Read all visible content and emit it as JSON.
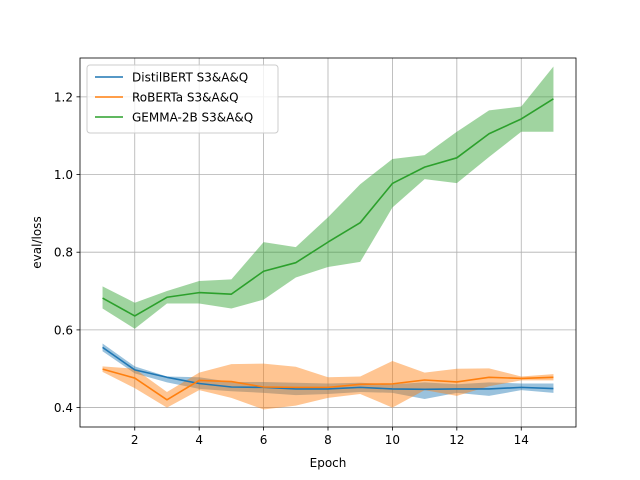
{
  "chart_data": {
    "type": "line",
    "title": "",
    "xlabel": "Epoch",
    "ylabel": "eval/loss",
    "xlim": [
      0.3,
      15.7
    ],
    "ylim": [
      0.35,
      1.3
    ],
    "xticks": [
      2,
      4,
      6,
      8,
      10,
      12,
      14
    ],
    "yticks": [
      0.4,
      0.6,
      0.8,
      1.0,
      1.2
    ],
    "xtick_labels": [
      "2",
      "4",
      "6",
      "8",
      "10",
      "12",
      "14"
    ],
    "ytick_labels": [
      "0.4",
      "0.6",
      "0.8",
      "1.0",
      "1.2"
    ],
    "grid": true,
    "legend_position": "top-left",
    "x": [
      1,
      2,
      3,
      4,
      5,
      6,
      7,
      8,
      9,
      10,
      11,
      12,
      13,
      14,
      15
    ],
    "series": [
      {
        "name": "DistilBERT S3&A&Q",
        "color": "#1f77b4",
        "values": [
          0.555,
          0.497,
          0.478,
          0.462,
          0.453,
          0.452,
          0.448,
          0.448,
          0.452,
          0.448,
          0.447,
          0.448,
          0.448,
          0.452,
          0.449
        ],
        "lower": [
          0.545,
          0.488,
          0.465,
          0.448,
          0.442,
          0.438,
          0.432,
          0.435,
          0.44,
          0.438,
          0.422,
          0.438,
          0.43,
          0.445,
          0.438
        ],
        "upper": [
          0.565,
          0.506,
          0.48,
          0.478,
          0.466,
          0.466,
          0.464,
          0.462,
          0.464,
          0.46,
          0.465,
          0.46,
          0.465,
          0.462,
          0.462
        ]
      },
      {
        "name": "RoBERTa S3&A&Q",
        "color": "#ff7f0e",
        "values": [
          0.499,
          0.476,
          0.42,
          0.47,
          0.467,
          0.453,
          0.452,
          0.452,
          0.46,
          0.461,
          0.471,
          0.466,
          0.478,
          0.475,
          0.478
        ],
        "lower": [
          0.492,
          0.45,
          0.4,
          0.445,
          0.425,
          0.395,
          0.405,
          0.425,
          0.435,
          0.4,
          0.445,
          0.43,
          0.455,
          0.47,
          0.47
        ],
        "upper": [
          0.506,
          0.5,
          0.44,
          0.49,
          0.512,
          0.513,
          0.505,
          0.478,
          0.48,
          0.52,
          0.49,
          0.5,
          0.501,
          0.48,
          0.486
        ]
      },
      {
        "name": "GEMMA-2B S3&A&Q",
        "color": "#2ca02c",
        "values": [
          0.682,
          0.636,
          0.684,
          0.696,
          0.692,
          0.751,
          0.773,
          0.826,
          0.876,
          0.977,
          1.019,
          1.043,
          1.105,
          1.143,
          1.195
        ],
        "lower": [
          0.655,
          0.603,
          0.668,
          0.668,
          0.655,
          0.678,
          0.735,
          0.762,
          0.775,
          0.915,
          0.988,
          0.978,
          1.045,
          1.11,
          1.11
        ],
        "upper": [
          0.712,
          0.67,
          0.7,
          0.726,
          0.73,
          0.826,
          0.813,
          0.89,
          0.975,
          1.04,
          1.05,
          1.11,
          1.165,
          1.175,
          1.278
        ]
      }
    ]
  }
}
